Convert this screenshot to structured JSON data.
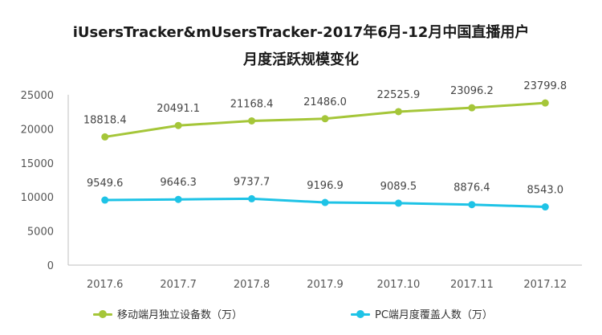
{
  "title_line1": "iUsersTracker&mUsersTracker-2017年6月-12月中国直播用户",
  "title_line2": "月度活跃规模变化",
  "chart_data": {
    "type": "line",
    "title": "iUsersTracker&mUsersTracker-2017年6月-12月中国直播用户月度活跃规模变化",
    "x": [
      "2017.6",
      "2017.7",
      "2017.8",
      "2017.9",
      "2017.10",
      "2017.11",
      "2017.12"
    ],
    "ylim": [
      0,
      25000
    ],
    "yticks": [
      0,
      5000,
      10000,
      15000,
      20000,
      25000
    ],
    "legend_position": "bottom",
    "grid": false,
    "series": [
      {
        "name": "移动端月独立设备数（万）",
        "color": "#a5c639",
        "values": [
          18818.4,
          20491.1,
          21168.4,
          21486.0,
          22525.9,
          23096.2,
          23799.8
        ],
        "labels": [
          "18818.4",
          "20491.1",
          "21168.4",
          "21486.0",
          "22525.9",
          "23096.2",
          "23799.8"
        ]
      },
      {
        "name": "PC端月度覆盖人数（万）",
        "color": "#1ec3e6",
        "values": [
          9549.6,
          9646.3,
          9737.7,
          9196.9,
          9089.5,
          8876.4,
          8543.0
        ],
        "labels": [
          "9549.6",
          "9646.3",
          "9737.7",
          "9196.9",
          "9089.5",
          "8876.4",
          "8543.0"
        ]
      }
    ]
  }
}
